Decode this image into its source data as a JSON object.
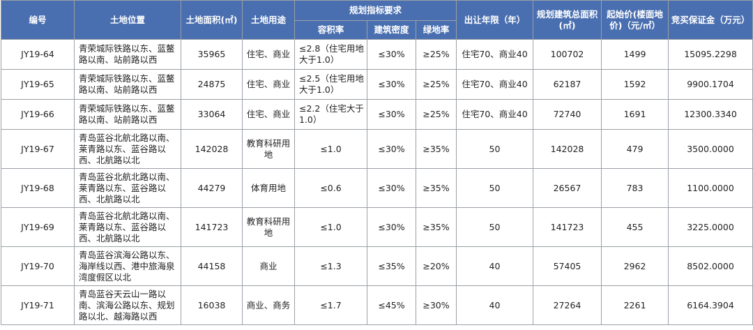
{
  "headers": {
    "id": "编号",
    "location": "土地位置",
    "area": "土地面积(㎡)",
    "use": "土地用途",
    "planning": "规划指标要求",
    "far": "容积率",
    "density": "建筑密度",
    "green": "绿地率",
    "term": "出让年限（年）",
    "gfa": "规划建筑总面积(㎡)",
    "price": "起始价(楼面地价)（元/㎡）",
    "deposit": "竞买保证金（万元）"
  },
  "rows": [
    {
      "id": "JY19-64",
      "location": "青荣城际铁路以东、蓝鳌路以南、站前路以西",
      "area": "35965",
      "use": "住宅、商业",
      "far": "≤2.8（住宅用地大于1.0）",
      "density": "≤30%",
      "green": "≥25%",
      "term": "住宅70、商业40",
      "gfa": "100702",
      "price": "1499",
      "deposit": "15095.2298"
    },
    {
      "id": "JY19-65",
      "location": "青荣城际铁路以东、蓝鳌路以南、站前路以西",
      "area": "24875",
      "use": "住宅、商业",
      "far": "≤2.5（住宅用地大于1.0）",
      "density": "≤30%",
      "green": "≥25%",
      "term": "住宅70、商业40",
      "gfa": "62187",
      "price": "1592",
      "deposit": "9900.1704"
    },
    {
      "id": "JY19-66",
      "location": "青荣城际铁路以东、蓝鳌路以南、站前路以西",
      "area": "33064",
      "use": "住宅、商业",
      "far": "≤2.2（住宅大于1.0）",
      "density": "≤30%",
      "green": "≥25%",
      "term": "住宅70、商业40",
      "gfa": "72740",
      "price": "1691",
      "deposit": "12300.3340"
    },
    {
      "id": "JY19-67",
      "location": "青岛蓝谷北航北路以南、莱青路以东、蓝谷路以西、北航路以北",
      "area": "142028",
      "use": "教育科研用地",
      "far": "≤1.0",
      "density": "≤30%",
      "green": "≥35%",
      "term": "50",
      "gfa": "142028",
      "price": "479",
      "deposit": "3500.0000"
    },
    {
      "id": "JY19-68",
      "location": "青岛蓝谷北航北路以南、莱青路以东、蓝谷路以西、北航路以北",
      "area": "44279",
      "use": "体育用地",
      "far": "≤0.6",
      "density": "≤30%",
      "green": "≥35%",
      "term": "50",
      "gfa": "26567",
      "price": "783",
      "deposit": "1100.0000"
    },
    {
      "id": "JY19-69",
      "location": "青岛蓝谷北航北路以南、莱青路以东、蓝谷路以西、北航路以北",
      "area": "141723",
      "use": "教育科研用地",
      "far": "≤1.0",
      "density": "≤30%",
      "green": "≥35%",
      "term": "50",
      "gfa": "141723",
      "price": "455",
      "deposit": "3225.0000"
    },
    {
      "id": "JY19-70",
      "location": "青岛蓝谷滨海公路以东、海岸线以西、港中旅海泉湾度假区以北",
      "area": "44158",
      "use": "商业",
      "far": "≤1.3",
      "density": "≤35%",
      "green": "≥20%",
      "term": "40",
      "gfa": "57405",
      "price": "2962",
      "deposit": "8502.0000"
    },
    {
      "id": "JY19-71",
      "location": "青岛蓝谷天云山一路以南、滨海公路以东、规划路以北、越海路以西",
      "area": "16038",
      "use": "商业、商务",
      "far": "≤1.7",
      "density": "≤45%",
      "green": "≥30%",
      "term": "40",
      "gfa": "27264",
      "price": "2261",
      "deposit": "6164.3904"
    }
  ]
}
